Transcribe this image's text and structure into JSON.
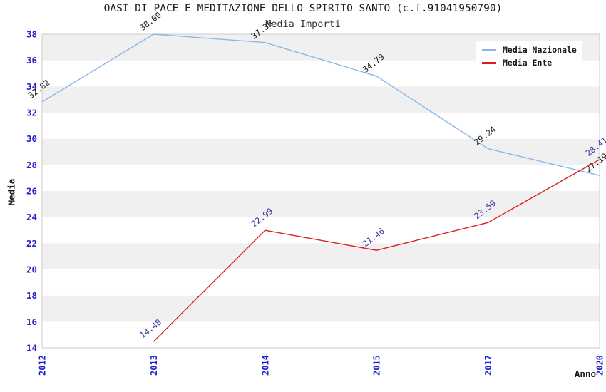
{
  "chart_data": {
    "type": "line",
    "title": "OASI DI PACE E MEDITAZIONE DELLO SPIRITO SANTO (c.f.91041950790)",
    "subtitle": "Media Importi",
    "xlabel": "Anno",
    "ylabel": "Media",
    "categories": [
      "2012",
      "2013",
      "2014",
      "2015",
      "2017",
      "2020"
    ],
    "series": [
      {
        "name": "Media Nazionale",
        "color": "#8ab6e8",
        "label_color": "#1a1a1a",
        "values": [
          32.82,
          38.0,
          37.36,
          34.79,
          29.24,
          27.19
        ]
      },
      {
        "name": "Media Ente",
        "color": "#df1b1b",
        "label_color": "#333399",
        "values": [
          null,
          14.48,
          22.99,
          21.46,
          23.59,
          28.41
        ]
      }
    ],
    "ylim": [
      14,
      38
    ],
    "ytick_step": 2,
    "value_decimals": 2,
    "grid": "alternating-horizontal-bands",
    "legend_position": "top-right",
    "colors": {
      "axis_tick_text": "#2323cc",
      "band_gray": "#f0f0f0",
      "band_white": "#ffffff",
      "plot_border": "#cccccc"
    }
  }
}
